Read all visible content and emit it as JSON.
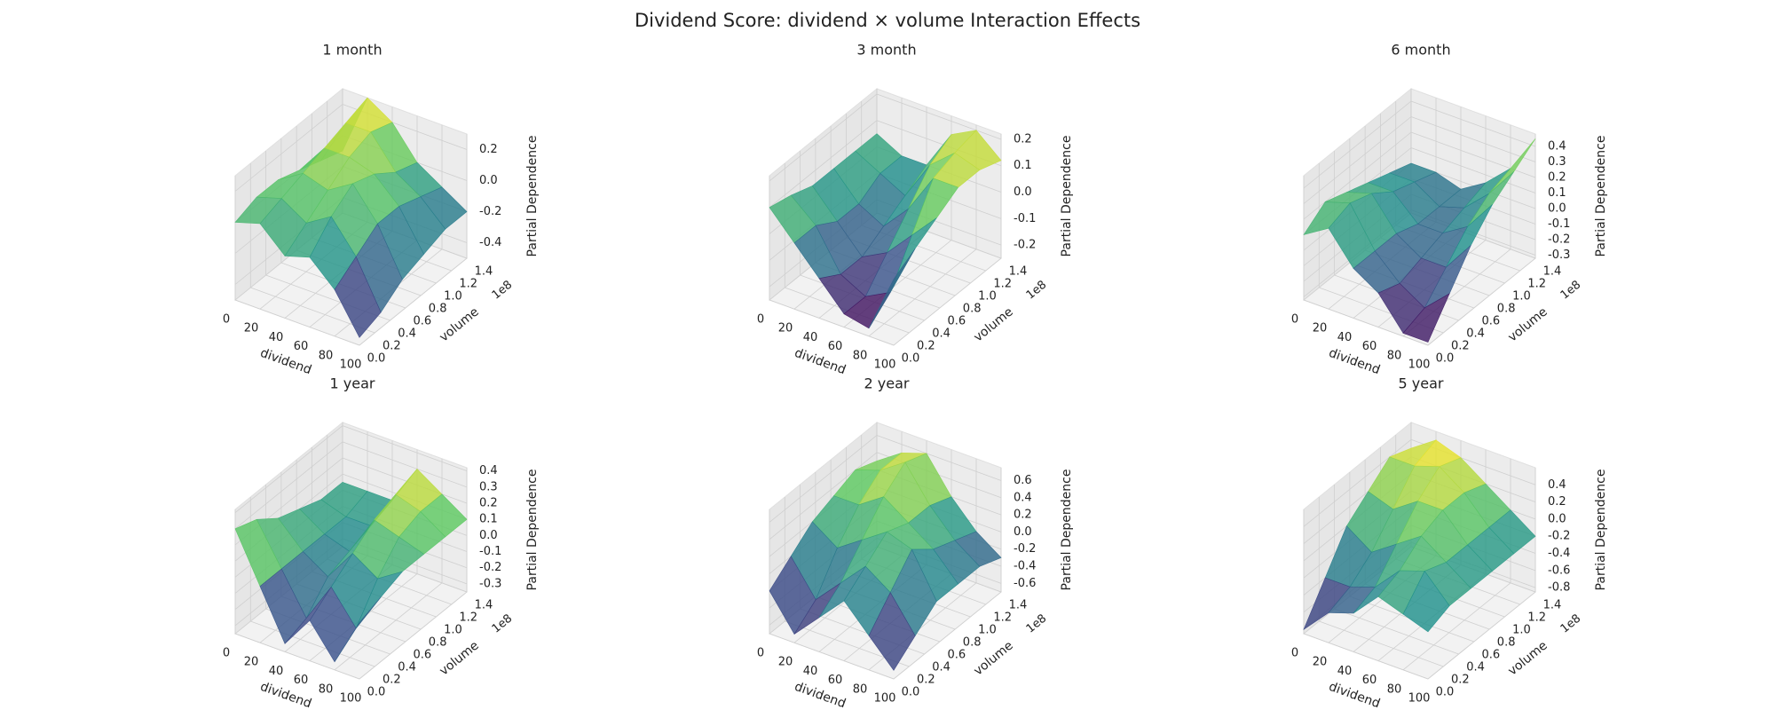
{
  "title": "Dividend Score: dividend × volume Interaction Effects",
  "chart_data": [
    {
      "type": "surface3d",
      "title": "1 month",
      "xlabel": "dividend",
      "ylabel": "volume",
      "zlabel": "Partial Dependence",
      "y_offset_label": "1e8",
      "colormap": "viridis",
      "x": [
        0,
        20,
        40,
        60,
        80,
        100
      ],
      "y": [
        0,
        28000000,
        56000000,
        84000000,
        112000000,
        140000000
      ],
      "z": [
        [
          0.0,
          0.05,
          -0.1,
          -0.05,
          -0.2,
          -0.45
        ],
        [
          0.05,
          0.1,
          0.0,
          0.1,
          -0.1,
          -0.4
        ],
        [
          0.05,
          0.15,
          0.1,
          0.2,
          0.0,
          -0.3
        ],
        [
          0.0,
          0.2,
          0.2,
          0.15,
          0.0,
          -0.25
        ],
        [
          -0.05,
          0.25,
          0.25,
          0.05,
          -0.05,
          -0.2
        ],
        [
          -0.1,
          0.3,
          0.2,
          0.0,
          -0.1,
          -0.2
        ]
      ],
      "xlim": [
        0,
        100
      ],
      "xticks": [
        0,
        20,
        40,
        60,
        80,
        100
      ],
      "ylim": [
        0,
        140000000
      ],
      "yticks": [
        {
          "value": 0,
          "label": "0.0"
        },
        {
          "value": 20000000,
          "label": "0.2"
        },
        {
          "value": 40000000,
          "label": "0.4"
        },
        {
          "value": 60000000,
          "label": "0.6"
        },
        {
          "value": 80000000,
          "label": "0.8"
        },
        {
          "value": 100000000,
          "label": "1.0"
        },
        {
          "value": 120000000,
          "label": "1.2"
        },
        {
          "value": 140000000,
          "label": "1.4"
        }
      ],
      "zlim": [
        -0.5,
        0.3
      ],
      "zticks": [
        -0.4,
        -0.2,
        {
          "value": 0,
          "label": "0.0"
        },
        0.2
      ]
    },
    {
      "type": "surface3d",
      "title": "3 month",
      "xlabel": "dividend",
      "ylabel": "volume",
      "zlabel": "Partial Dependence",
      "y_offset_label": "1e8",
      "colormap": "viridis",
      "x": [
        0,
        20,
        40,
        60,
        80,
        100
      ],
      "y": [
        0,
        28000000,
        56000000,
        84000000,
        112000000,
        140000000
      ],
      "z": [
        [
          0.1,
          0.0,
          -0.1,
          -0.2,
          -0.22,
          0.0
        ],
        [
          0.08,
          0.0,
          -0.15,
          -0.2,
          -0.15,
          0.05
        ],
        [
          0.05,
          -0.05,
          -0.15,
          -0.1,
          0.0,
          0.1
        ],
        [
          0.05,
          -0.05,
          -0.1,
          0.0,
          0.15,
          0.15
        ],
        [
          0.05,
          0.0,
          -0.05,
          0.1,
          0.18,
          0.15
        ],
        [
          0.05,
          0.0,
          0.0,
          0.15,
          0.2,
          0.12
        ]
      ],
      "xlim": [
        0,
        100
      ],
      "xticks": [
        0,
        20,
        40,
        60,
        80,
        100
      ],
      "ylim": [
        0,
        140000000
      ],
      "yticks": [
        {
          "value": 0,
          "label": "0.0"
        },
        {
          "value": 20000000,
          "label": "0.2"
        },
        {
          "value": 40000000,
          "label": "0.4"
        },
        {
          "value": 60000000,
          "label": "0.6"
        },
        {
          "value": 80000000,
          "label": "0.8"
        },
        {
          "value": 100000000,
          "label": "1.0"
        },
        {
          "value": 120000000,
          "label": "1.2"
        },
        {
          "value": 140000000,
          "label": "1.4"
        }
      ],
      "zlim": [
        -0.25,
        0.22
      ],
      "zticks": [
        -0.2,
        -0.1,
        {
          "value": 0,
          "label": "0.0"
        },
        0.1,
        0.2
      ]
    },
    {
      "type": "surface3d",
      "title": "6 month",
      "xlabel": "dividend",
      "ylabel": "volume",
      "zlabel": "Partial Dependence",
      "y_offset_label": "1e8",
      "colormap": "viridis",
      "x": [
        0,
        20,
        40,
        60,
        80,
        100
      ],
      "y": [
        0,
        28000000,
        56000000,
        84000000,
        112000000,
        140000000
      ],
      "z": [
        [
          0.1,
          0.2,
          0.0,
          -0.1,
          -0.3,
          -0.3
        ],
        [
          0.2,
          0.25,
          0.0,
          -0.15,
          -0.25,
          -0.1
        ],
        [
          0.15,
          0.2,
          0.0,
          -0.1,
          -0.1,
          0.1
        ],
        [
          0.1,
          0.1,
          -0.05,
          -0.05,
          0.05,
          0.25
        ],
        [
          0.05,
          0.05,
          -0.05,
          0.0,
          0.15,
          0.35
        ],
        [
          0.0,
          0.0,
          -0.05,
          0.05,
          0.2,
          0.45
        ]
      ],
      "xlim": [
        0,
        100
      ],
      "xticks": [
        0,
        20,
        40,
        60,
        80,
        100
      ],
      "ylim": [
        0,
        140000000
      ],
      "yticks": [
        {
          "value": 0,
          "label": "0.0"
        },
        {
          "value": 20000000,
          "label": "0.2"
        },
        {
          "value": 40000000,
          "label": "0.4"
        },
        {
          "value": 60000000,
          "label": "0.6"
        },
        {
          "value": 80000000,
          "label": "0.8"
        },
        {
          "value": 100000000,
          "label": "1.0"
        },
        {
          "value": 120000000,
          "label": "1.2"
        },
        {
          "value": 140000000,
          "label": "1.4"
        }
      ],
      "zlim": [
        -0.32,
        0.48
      ],
      "zticks": [
        -0.3,
        -0.2,
        -0.1,
        {
          "value": 0,
          "label": "0.0"
        },
        0.1,
        0.2,
        0.3,
        0.4
      ]
    },
    {
      "type": "surface3d",
      "title": "1 year",
      "xlabel": "dividend",
      "ylabel": "volume",
      "zlabel": "Partial Dependence",
      "y_offset_label": "1e8",
      "colormap": "viridis",
      "x": [
        0,
        20,
        40,
        60,
        80,
        100
      ],
      "y": [
        0,
        28000000,
        56000000,
        84000000,
        112000000,
        140000000
      ],
      "z": [
        [
          0.3,
          0.0,
          -0.3,
          -0.1,
          -0.3,
          0.0
        ],
        [
          0.25,
          0.0,
          -0.25,
          0.0,
          -0.2,
          0.05
        ],
        [
          0.15,
          0.0,
          -0.1,
          0.1,
          0.0,
          0.1
        ],
        [
          0.1,
          0.0,
          -0.05,
          0.2,
          0.15,
          0.1
        ],
        [
          0.05,
          0.0,
          0.0,
          0.25,
          0.2,
          0.1
        ],
        [
          0.05,
          0.05,
          0.05,
          0.3,
          0.2,
          0.1
        ]
      ],
      "xlim": [
        0,
        100
      ],
      "xticks": [
        0,
        20,
        40,
        60,
        80,
        100
      ],
      "ylim": [
        0,
        140000000
      ],
      "yticks": [
        {
          "value": 0,
          "label": "0.0"
        },
        {
          "value": 20000000,
          "label": "0.2"
        },
        {
          "value": 40000000,
          "label": "0.4"
        },
        {
          "value": 60000000,
          "label": "0.6"
        },
        {
          "value": 80000000,
          "label": "0.8"
        },
        {
          "value": 100000000,
          "label": "1.0"
        },
        {
          "value": 120000000,
          "label": "1.2"
        },
        {
          "value": 140000000,
          "label": "1.4"
        }
      ],
      "zlim": [
        -0.35,
        0.42
      ],
      "zticks": [
        -0.3,
        -0.2,
        -0.1,
        {
          "value": 0,
          "label": "0.0"
        },
        0.1,
        0.2,
        0.3,
        0.4
      ]
    },
    {
      "type": "surface3d",
      "title": "2 year",
      "xlabel": "dividend",
      "ylabel": "volume",
      "zlabel": "Partial Dependence",
      "y_offset_label": "1e8",
      "colormap": "viridis",
      "x": [
        0,
        20,
        40,
        60,
        80,
        100
      ],
      "y": [
        0,
        28000000,
        56000000,
        84000000,
        112000000,
        140000000
      ],
      "z": [
        [
          -0.2,
          -0.6,
          -0.3,
          0.0,
          -0.3,
          -0.6
        ],
        [
          0.0,
          -0.4,
          -0.1,
          0.2,
          0.0,
          -0.4
        ],
        [
          0.2,
          0.0,
          0.2,
          0.4,
          0.3,
          -0.2
        ],
        [
          0.3,
          0.3,
          0.5,
          0.3,
          0.1,
          -0.2
        ],
        [
          0.4,
          0.5,
          0.7,
          0.3,
          0.0,
          -0.2
        ],
        [
          0.3,
          0.5,
          0.6,
          0.2,
          -0.1,
          -0.3
        ]
      ],
      "xlim": [
        0,
        100
      ],
      "xticks": [
        0,
        20,
        40,
        60,
        80,
        100
      ],
      "ylim": [
        0,
        140000000
      ],
      "yticks": [
        {
          "value": 0,
          "label": "0.0"
        },
        {
          "value": 20000000,
          "label": "0.2"
        },
        {
          "value": 40000000,
          "label": "0.4"
        },
        {
          "value": 60000000,
          "label": "0.6"
        },
        {
          "value": 80000000,
          "label": "0.8"
        },
        {
          "value": 100000000,
          "label": "1.0"
        },
        {
          "value": 120000000,
          "label": "1.2"
        },
        {
          "value": 140000000,
          "label": "1.4"
        }
      ],
      "zlim": [
        -0.7,
        0.75
      ],
      "zticks": [
        -0.6,
        -0.4,
        -0.2,
        {
          "value": 0,
          "label": "0.0"
        },
        0.2,
        0.4,
        0.6
      ]
    },
    {
      "type": "surface3d",
      "title": "5 year",
      "xlabel": "dividend",
      "ylabel": "volume",
      "zlabel": "Partial Dependence",
      "y_offset_label": "1e8",
      "colormap": "viridis",
      "x": [
        0,
        20,
        40,
        60,
        80,
        100
      ],
      "y": [
        0,
        28000000,
        56000000,
        84000000,
        112000000,
        140000000
      ],
      "z": [
        [
          -0.8,
          -0.5,
          -0.4,
          -0.1,
          -0.2,
          -0.3
        ],
        [
          -0.4,
          -0.4,
          -0.3,
          0.0,
          0.1,
          -0.2
        ],
        [
          0.0,
          -0.2,
          0.0,
          0.2,
          0.0,
          -0.2
        ],
        [
          0.2,
          0.1,
          0.3,
          0.3,
          0.0,
          -0.2
        ],
        [
          0.4,
          0.4,
          0.5,
          0.3,
          0.0,
          -0.2
        ],
        [
          0.3,
          0.5,
          0.4,
          0.2,
          0.0,
          -0.2
        ]
      ],
      "xlim": [
        0,
        100
      ],
      "xticks": [
        0,
        20,
        40,
        60,
        80,
        100
      ],
      "ylim": [
        0,
        140000000
      ],
      "yticks": [
        {
          "value": 0,
          "label": "0.0"
        },
        {
          "value": 20000000,
          "label": "0.2"
        },
        {
          "value": 40000000,
          "label": "0.4"
        },
        {
          "value": 60000000,
          "label": "0.6"
        },
        {
          "value": 80000000,
          "label": "0.8"
        },
        {
          "value": 100000000,
          "label": "1.0"
        },
        {
          "value": 120000000,
          "label": "1.2"
        },
        {
          "value": 140000000,
          "label": "1.4"
        }
      ],
      "zlim": [
        -0.85,
        0.6
      ],
      "zticks": [
        -0.8,
        -0.6,
        -0.4,
        -0.2,
        {
          "value": 0,
          "label": "0.0"
        },
        0.2,
        0.4
      ]
    }
  ]
}
